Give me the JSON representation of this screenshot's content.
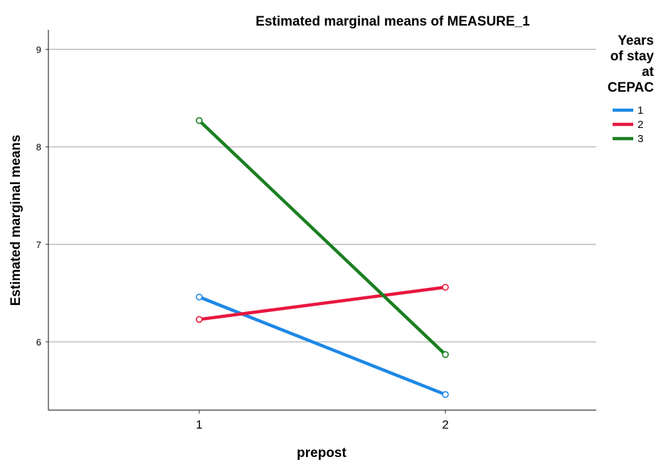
{
  "chart_data": {
    "type": "line",
    "title": "Estimated marginal means of MEASURE_1",
    "xlabel": "prepost",
    "ylabel": "Estimated marginal means",
    "categories": [
      "1",
      "2"
    ],
    "yticks": [
      "6",
      "7",
      "8",
      "9"
    ],
    "ylim": [
      5.3,
      9.2
    ],
    "grid": true,
    "legend": {
      "title_lines": [
        "Years",
        "of stay",
        "at",
        "CEPAC"
      ],
      "placement": "right"
    },
    "series": [
      {
        "name": "1",
        "color": "#1e88e5",
        "values": [
          6.46,
          5.46
        ]
      },
      {
        "name": "2",
        "color": "#e8173f",
        "values": [
          6.23,
          6.56
        ]
      },
      {
        "name": "3",
        "color": "#1a7f20",
        "values": [
          8.27,
          5.87
        ]
      }
    ]
  }
}
